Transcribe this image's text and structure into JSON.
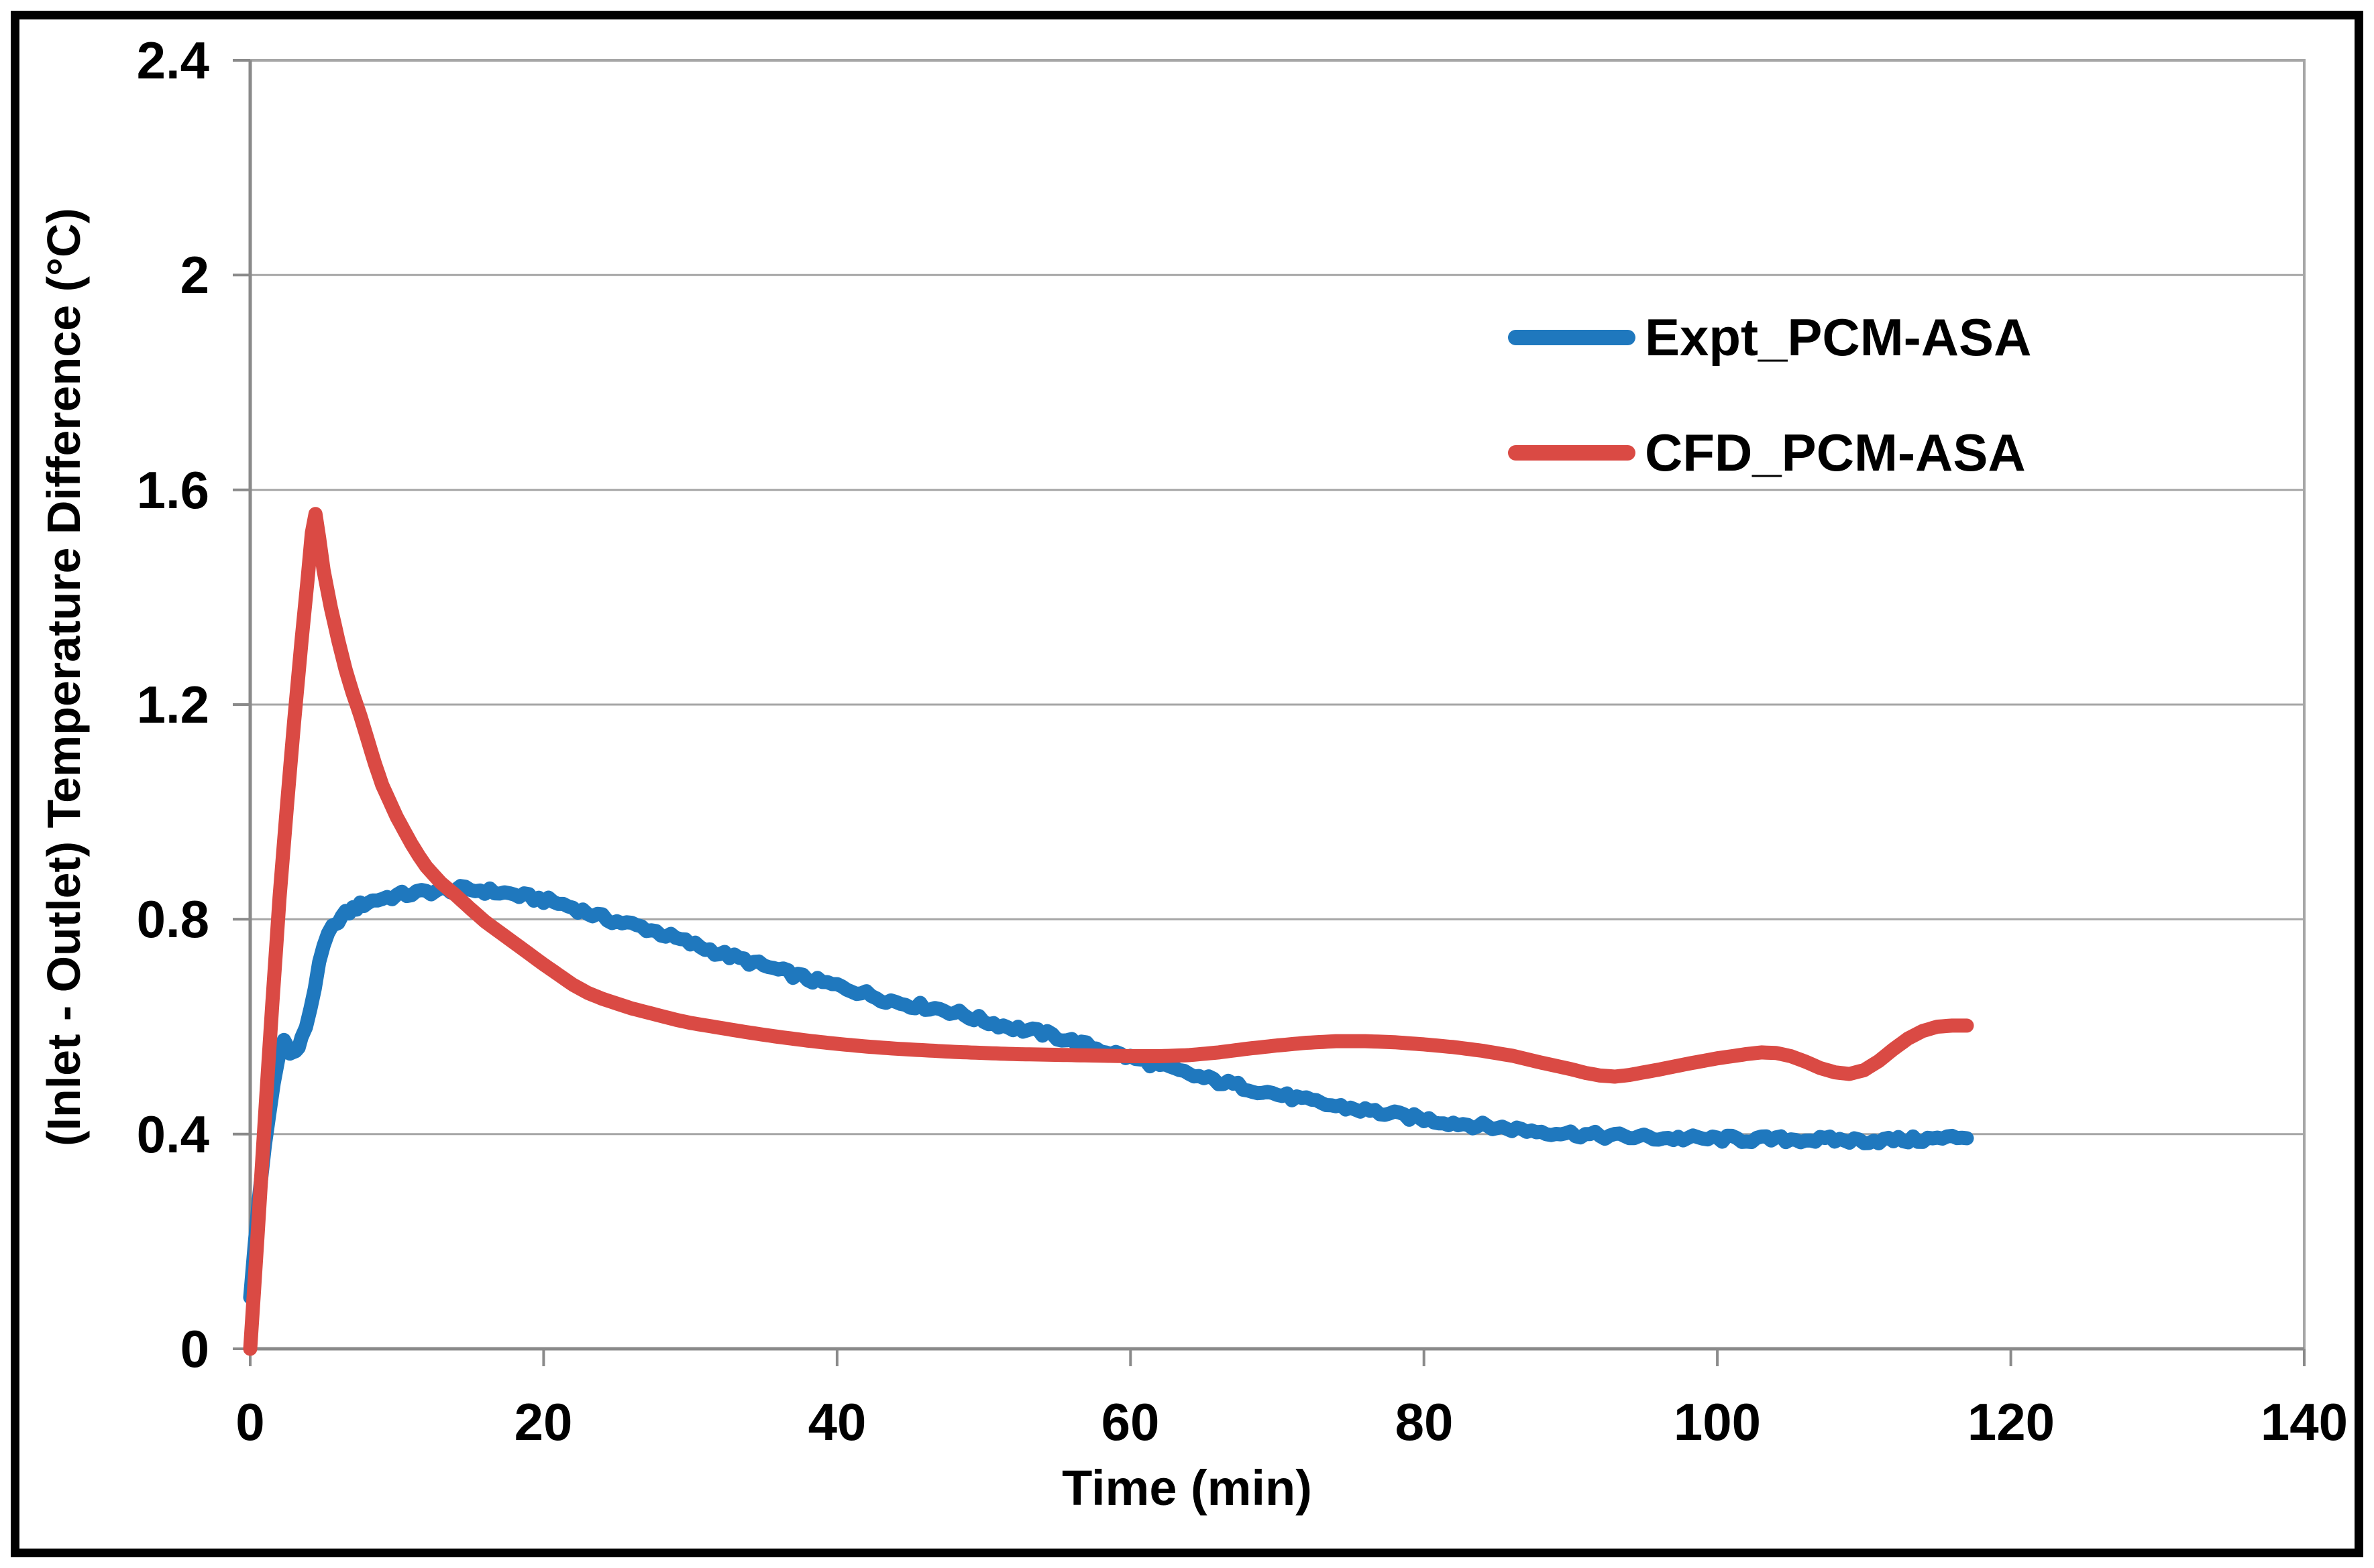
{
  "figure": {
    "background": "#ffffff",
    "border_color": "#000000",
    "plot_border_color": "#a6a6a6",
    "grid_color": "#a6a6a6",
    "axis_color": "#8a8a8a",
    "text_color": "#000000"
  },
  "chart_data": {
    "type": "line",
    "title": "",
    "xlabel": "Time (min)",
    "ylabel": "(Inlet - Outlet) Temperature Difference (°C)",
    "xlim": [
      0,
      140
    ],
    "ylim": [
      0,
      2.4
    ],
    "xticks": [
      "0",
      "20",
      "40",
      "60",
      "80",
      "100",
      "120",
      "140"
    ],
    "xtick_values": [
      0,
      20,
      40,
      60,
      80,
      100,
      120,
      140
    ],
    "yticks": [
      "0",
      "0.4",
      "0.8",
      "1.2",
      "1.6",
      "2",
      "2.4"
    ],
    "ytick_values": [
      0,
      0.4,
      0.8,
      1.2,
      1.6,
      2,
      2.4
    ],
    "grid": "horizontal",
    "legend_position": "inside-upper-right",
    "series": [
      {
        "id": "expt",
        "name": "Expt_PCM-ASA",
        "color": "#1f78be",
        "noise_amplitude": 0.0065,
        "points": [
          [
            0,
            0.1
          ],
          [
            0.3,
            0.19
          ],
          [
            0.6,
            0.28
          ],
          [
            1,
            0.38
          ],
          [
            1.3,
            0.44
          ],
          [
            1.6,
            0.49
          ],
          [
            1.9,
            0.535
          ],
          [
            2.1,
            0.562
          ],
          [
            2.3,
            0.575
          ],
          [
            2.5,
            0.565
          ],
          [
            2.7,
            0.556
          ],
          [
            2.9,
            0.551
          ],
          [
            3.1,
            0.553
          ],
          [
            3.3,
            0.562
          ],
          [
            3.5,
            0.576
          ],
          [
            3.8,
            0.601
          ],
          [
            4.1,
            0.634
          ],
          [
            4.4,
            0.674
          ],
          [
            4.7,
            0.714
          ],
          [
            5,
            0.748
          ],
          [
            5.3,
            0.769
          ],
          [
            5.6,
            0.784
          ],
          [
            6,
            0.799
          ],
          [
            6.5,
            0.81
          ],
          [
            7,
            0.819
          ],
          [
            7.5,
            0.826
          ],
          [
            8,
            0.832
          ],
          [
            9,
            0.839
          ],
          [
            10,
            0.844
          ],
          [
            11,
            0.848
          ],
          [
            12,
            0.851
          ],
          [
            13,
            0.854
          ],
          [
            14,
            0.856
          ],
          [
            15,
            0.855
          ],
          [
            16,
            0.853
          ],
          [
            17,
            0.85
          ],
          [
            18,
            0.846
          ],
          [
            19,
            0.841
          ],
          [
            20,
            0.836
          ],
          [
            21,
            0.83
          ],
          [
            22,
            0.822
          ],
          [
            23,
            0.812
          ],
          [
            24,
            0.803
          ],
          [
            25,
            0.796
          ],
          [
            26,
            0.79
          ],
          [
            27,
            0.783
          ],
          [
            28,
            0.774
          ],
          [
            29,
            0.764
          ],
          [
            30,
            0.755
          ],
          [
            31,
            0.746
          ],
          [
            32,
            0.737
          ],
          [
            33,
            0.729
          ],
          [
            34,
            0.721
          ],
          [
            35,
            0.713
          ],
          [
            36,
            0.705
          ],
          [
            37,
            0.697
          ],
          [
            38,
            0.689
          ],
          [
            39,
            0.682
          ],
          [
            40,
            0.676
          ],
          [
            41,
            0.669
          ],
          [
            42,
            0.661
          ],
          [
            43,
            0.653
          ],
          [
            44,
            0.646
          ],
          [
            45,
            0.641
          ],
          [
            46,
            0.637
          ],
          [
            47,
            0.633
          ],
          [
            48,
            0.627
          ],
          [
            49,
            0.619
          ],
          [
            50,
            0.611
          ],
          [
            51,
            0.604
          ],
          [
            52,
            0.598
          ],
          [
            53,
            0.593
          ],
          [
            54,
            0.588
          ],
          [
            55,
            0.581
          ],
          [
            56,
            0.573
          ],
          [
            57,
            0.565
          ],
          [
            58,
            0.557
          ],
          [
            59,
            0.55
          ],
          [
            60,
            0.542
          ],
          [
            61,
            0.535
          ],
          [
            62,
            0.527
          ],
          [
            63,
            0.519
          ],
          [
            64,
            0.511
          ],
          [
            65,
            0.504
          ],
          [
            66,
            0.498
          ],
          [
            67,
            0.492
          ],
          [
            68,
            0.486
          ],
          [
            69,
            0.48
          ],
          [
            70,
            0.474
          ],
          [
            71,
            0.468
          ],
          [
            72,
            0.462
          ],
          [
            73,
            0.457
          ],
          [
            74,
            0.452
          ],
          [
            75,
            0.448
          ],
          [
            76,
            0.444
          ],
          [
            77,
            0.44
          ],
          [
            78,
            0.436
          ],
          [
            79,
            0.432
          ],
          [
            80,
            0.428
          ],
          [
            81,
            0.424
          ],
          [
            82,
            0.421
          ],
          [
            83,
            0.418
          ],
          [
            84,
            0.415
          ],
          [
            85,
            0.412
          ],
          [
            86,
            0.41
          ],
          [
            87,
            0.407
          ],
          [
            88,
            0.405
          ],
          [
            89,
            0.403
          ],
          [
            90,
            0.401
          ],
          [
            91,
            0.399
          ],
          [
            92,
            0.397
          ],
          [
            93,
            0.396
          ],
          [
            94,
            0.395
          ],
          [
            95,
            0.394
          ],
          [
            96,
            0.393
          ],
          [
            97,
            0.392
          ],
          [
            98,
            0.392
          ],
          [
            99,
            0.391
          ],
          [
            100,
            0.391
          ],
          [
            101,
            0.391
          ],
          [
            102,
            0.39
          ],
          [
            103,
            0.39
          ],
          [
            104,
            0.39
          ],
          [
            105,
            0.39
          ],
          [
            106,
            0.39
          ],
          [
            107,
            0.389
          ],
          [
            108,
            0.389
          ],
          [
            109,
            0.388
          ],
          [
            110,
            0.388
          ],
          [
            111,
            0.388
          ],
          [
            112,
            0.389
          ],
          [
            113,
            0.389
          ],
          [
            114,
            0.39
          ],
          [
            115,
            0.391
          ],
          [
            116,
            0.393
          ],
          [
            117,
            0.396
          ]
        ]
      },
      {
        "id": "cfd",
        "name": "CFD_PCM-ASA",
        "color": "#da4a44",
        "noise_amplitude": 0,
        "points": [
          [
            0,
            0
          ],
          [
            0.5,
            0.21
          ],
          [
            1,
            0.43
          ],
          [
            1.5,
            0.64
          ],
          [
            2,
            0.84
          ],
          [
            2.5,
            1.01
          ],
          [
            3,
            1.17
          ],
          [
            3.5,
            1.32
          ],
          [
            3.9,
            1.43
          ],
          [
            4.2,
            1.52
          ],
          [
            4.45,
            1.555
          ],
          [
            4.7,
            1.51
          ],
          [
            5,
            1.45
          ],
          [
            5.5,
            1.38
          ],
          [
            6,
            1.32
          ],
          [
            6.5,
            1.265
          ],
          [
            7,
            1.22
          ],
          [
            7.5,
            1.18
          ],
          [
            8,
            1.135
          ],
          [
            8.5,
            1.09
          ],
          [
            9,
            1.05
          ],
          [
            9.5,
            1.02
          ],
          [
            10,
            0.99
          ],
          [
            10.5,
            0.965
          ],
          [
            11,
            0.94
          ],
          [
            11.5,
            0.918
          ],
          [
            12,
            0.898
          ],
          [
            13,
            0.868
          ],
          [
            14,
            0.845
          ],
          [
            15,
            0.82
          ],
          [
            16,
            0.796
          ],
          [
            17,
            0.776
          ],
          [
            18,
            0.756
          ],
          [
            19,
            0.736
          ],
          [
            20,
            0.716
          ],
          [
            21,
            0.697
          ],
          [
            22,
            0.678
          ],
          [
            23,
            0.663
          ],
          [
            24,
            0.652
          ],
          [
            25,
            0.643
          ],
          [
            26,
            0.634
          ],
          [
            27,
            0.627
          ],
          [
            28,
            0.62
          ],
          [
            29,
            0.613
          ],
          [
            30,
            0.607
          ],
          [
            32,
            0.598
          ],
          [
            34,
            0.589
          ],
          [
            36,
            0.581
          ],
          [
            38,
            0.574
          ],
          [
            40,
            0.568
          ],
          [
            42,
            0.563
          ],
          [
            44,
            0.559
          ],
          [
            46,
            0.556
          ],
          [
            48,
            0.553
          ],
          [
            50,
            0.551
          ],
          [
            52,
            0.549
          ],
          [
            54,
            0.548
          ],
          [
            56,
            0.547
          ],
          [
            58,
            0.546
          ],
          [
            60,
            0.545
          ],
          [
            62,
            0.545
          ],
          [
            64,
            0.547
          ],
          [
            66,
            0.552
          ],
          [
            68,
            0.559
          ],
          [
            70,
            0.565
          ],
          [
            72,
            0.57
          ],
          [
            74,
            0.573
          ],
          [
            76,
            0.573
          ],
          [
            78,
            0.571
          ],
          [
            80,
            0.567
          ],
          [
            82,
            0.562
          ],
          [
            84,
            0.555
          ],
          [
            86,
            0.546
          ],
          [
            88,
            0.533
          ],
          [
            90,
            0.521
          ],
          [
            91,
            0.514
          ],
          [
            92,
            0.509
          ],
          [
            93,
            0.507
          ],
          [
            94,
            0.51
          ],
          [
            96,
            0.52
          ],
          [
            98,
            0.531
          ],
          [
            100,
            0.541
          ],
          [
            102,
            0.549
          ],
          [
            103,
            0.552
          ],
          [
            104,
            0.551
          ],
          [
            105,
            0.545
          ],
          [
            106,
            0.535
          ],
          [
            107,
            0.523
          ],
          [
            108,
            0.515
          ],
          [
            109,
            0.512
          ],
          [
            110,
            0.519
          ],
          [
            111,
            0.536
          ],
          [
            112,
            0.558
          ],
          [
            113,
            0.578
          ],
          [
            114,
            0.592
          ],
          [
            115,
            0.6
          ],
          [
            116,
            0.602
          ],
          [
            117,
            0.602
          ]
        ]
      }
    ]
  }
}
